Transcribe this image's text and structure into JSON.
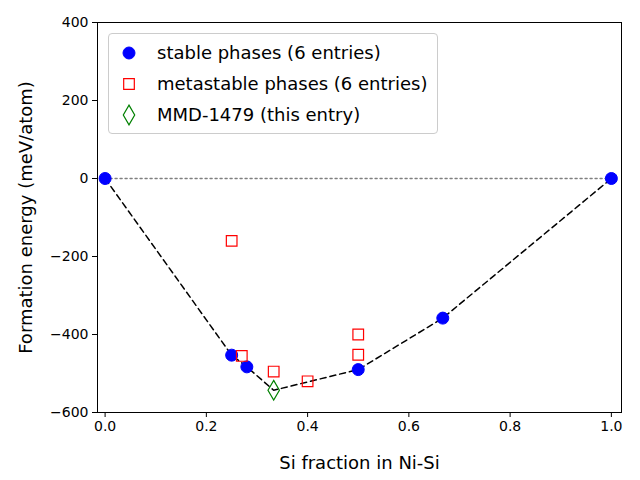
{
  "chart_data": {
    "type": "scatter",
    "xlabel": "Si fraction in Ni-Si",
    "ylabel": "Formation energy (meV/atom)",
    "xlim": [
      -0.015,
      1.02
    ],
    "xticks": [
      {
        "value": 0,
        "label": "0.0"
      },
      {
        "value": 0.2,
        "label": "0.2"
      },
      {
        "value": 0.4,
        "label": "0.4"
      },
      {
        "value": 0.6,
        "label": "0.6"
      },
      {
        "value": 0.8,
        "label": "0.8"
      },
      {
        "value": 1,
        "label": "1.0"
      }
    ],
    "ylim": [
      -600,
      400
    ],
    "yticks": [
      -600,
      -400,
      -200,
      0,
      200,
      400
    ],
    "legend": "upper left",
    "series": [
      {
        "type": "line",
        "color": "gray",
        "line_style": "dotted",
        "x": [
          0,
          1
        ],
        "values": [
          0,
          0
        ]
      },
      {
        "type": "line",
        "color": "black",
        "line_style": "dashed",
        "x": [
          0,
          0.25,
          0.28,
          0.333,
          0.5,
          0.667,
          1
        ],
        "values": [
          0,
          -453,
          -483,
          -543,
          -490,
          -358,
          0
        ]
      },
      {
        "name": "stable phases (6 entries)",
        "type": "scatter",
        "color": "blue",
        "marker": "circle",
        "x": [
          0,
          0.25,
          0.28,
          0.5,
          0.667,
          1
        ],
        "values": [
          0,
          -453,
          -483,
          -490,
          -358,
          0
        ]
      },
      {
        "name": "metastable phases (6 entries)",
        "type": "scatter",
        "color": "red",
        "marker": "square_open",
        "x": [
          0.25,
          0.27,
          0.333,
          0.4,
          0.5,
          0.5
        ],
        "values": [
          -160,
          -455,
          -495,
          -520,
          -400,
          -452
        ]
      },
      {
        "name": "MMD-1479 (this entry)",
        "type": "scatter",
        "color": "green",
        "marker": "diamond_open",
        "x": [
          0.333
        ],
        "values": [
          -543
        ]
      }
    ]
  }
}
